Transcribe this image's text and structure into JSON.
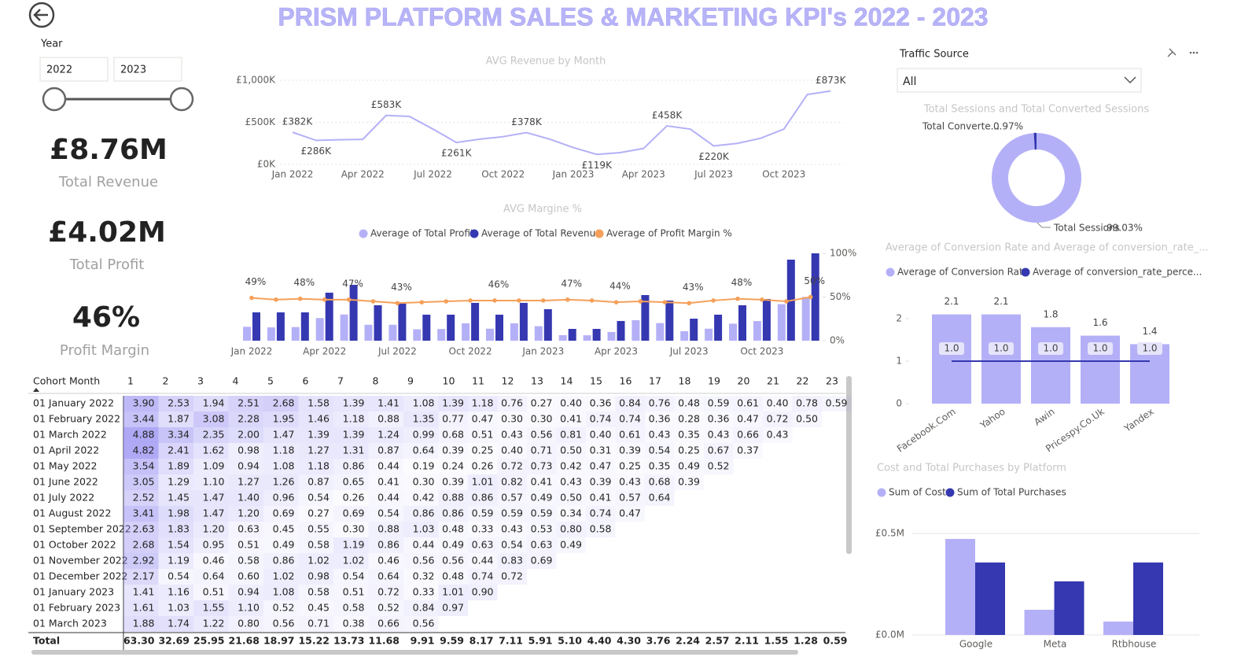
{
  "header": {
    "title": "PRISM PLATFORM SALES & MARKETING KPI's 2022 - 2023"
  },
  "year_slicer": {
    "label": "Year",
    "from": "2022",
    "to": "2023"
  },
  "kpis": [
    {
      "value": "£8.76M",
      "label": "Total Revenue"
    },
    {
      "value": "£4.02M",
      "label": "Total Profit"
    },
    {
      "value": "46%",
      "label": "Profit Margin"
    }
  ],
  "traffic_slicer": {
    "label": "Traffic Source",
    "value": "All"
  },
  "chart_data": [
    {
      "type": "line",
      "title": "AVG Revenue by Month",
      "color": "#b4b0f7",
      "categories": [
        "Jan 2022",
        null,
        null,
        "Apr 2022",
        null,
        null,
        "Jul 2022",
        null,
        null,
        "Oct 2022",
        null,
        null,
        "Jan 2023",
        null,
        null,
        "Apr 2023",
        null,
        null,
        "Jul 2023",
        null,
        null,
        "Oct 2023",
        null,
        null
      ],
      "values": [
        382000,
        286000,
        293000,
        298000,
        583000,
        570000,
        420000,
        261000,
        300000,
        330000,
        378000,
        300000,
        200000,
        119000,
        140000,
        190000,
        458000,
        420000,
        220000,
        250000,
        310000,
        420000,
        830000,
        873000
      ],
      "value_labels": [
        "£382K",
        "£286K",
        null,
        null,
        "£583K",
        null,
        null,
        "£261K",
        null,
        null,
        "£378K",
        null,
        null,
        "£119K",
        null,
        null,
        "£458K",
        null,
        "£220K",
        null,
        null,
        null,
        null,
        "£873K"
      ],
      "ylim": [
        0,
        1000000
      ],
      "yticks": [
        {
          "value": 0,
          "label": "£0K"
        },
        {
          "value": 500000,
          "label": "£500K"
        },
        {
          "value": 1000000,
          "label": "£1,000K"
        }
      ],
      "grid": true
    },
    {
      "type": "combo",
      "title": "AVG Margine %",
      "categories": [
        "Jan 2022",
        null,
        null,
        "Apr 2022",
        null,
        null,
        "Jul 2022",
        null,
        null,
        "Oct 2022",
        null,
        null,
        "Jan 2023",
        null,
        null,
        "Apr 2023",
        null,
        null,
        "Jul 2023",
        null,
        null,
        "Oct 2023",
        null,
        null
      ],
      "series": [
        {
          "name": "Average of Total Profit",
          "color": "#b4b0f7",
          "values": [
            139000,
            133000,
            136000,
            226000,
            262000,
            159000,
            159000,
            114000,
            117000,
            174000,
            120000,
            174000,
            145000,
            55000,
            54000,
            87000,
            205000,
            176000,
            95000,
            120000,
            170000,
            196000,
            365000,
            437000
          ]
        },
        {
          "name": "Average of Total Revenue",
          "color": "#3538b0",
          "values": [
            283000,
            283000,
            283000,
            480000,
            558000,
            354000,
            370000,
            260000,
            260000,
            378000,
            260000,
            378000,
            315000,
            118000,
            118000,
            197000,
            456000,
            401000,
            220000,
            260000,
            354000,
            417000,
            810000,
            873000
          ]
        },
        {
          "name": "Average of Profit Margin %",
          "color": "#f5a05a",
          "axis": "y2",
          "values": [
            49,
            47,
            48,
            47,
            47,
            45,
            43,
            44,
            45,
            46,
            46,
            46,
            46,
            47,
            46,
            44,
            45,
            44,
            43,
            46,
            48,
            47,
            45,
            50
          ],
          "value_labels": [
            "49%",
            null,
            "48%",
            null,
            "47%",
            null,
            "43%",
            null,
            null,
            null,
            "46%",
            null,
            null,
            "47%",
            null,
            "44%",
            null,
            null,
            "43%",
            null,
            "48%",
            null,
            null,
            "50%"
          ]
        }
      ],
      "y2lim": [
        0,
        100
      ],
      "y2ticks": [
        {
          "value": 0,
          "label": "0%"
        },
        {
          "value": 50,
          "label": "50%"
        },
        {
          "value": 100,
          "label": "100%"
        }
      ]
    },
    {
      "type": "donut",
      "title": "Total Sessions and Total Converted Sessions",
      "categories": [
        "Total Sessions",
        "Total Converte..."
      ],
      "values": [
        99.03,
        0.97
      ],
      "value_labels": [
        "99.03%",
        "0.97%"
      ],
      "colors": [
        "#b4b0f7",
        "#3538b0"
      ]
    },
    {
      "type": "combo",
      "title": "Average of Conversion Rate and Average of conversion_rate_...",
      "categories": [
        "Facebook.Com",
        "Yahoo",
        "Awin",
        "Pricespy.Co.Uk",
        "Yandex"
      ],
      "series": [
        {
          "name": "Average of Conversion Rate",
          "color": "#b4b0f7",
          "values": [
            2.1,
            2.1,
            1.8,
            1.6,
            1.4
          ]
        },
        {
          "name": "Average of conversion_rate_perce...",
          "color": "#3538b0",
          "values": [
            1,
            1,
            1,
            1,
            1
          ],
          "value_labels": [
            "1.0",
            "1.0",
            "1.0",
            "1.0",
            "1.0"
          ]
        }
      ],
      "ylim": [
        0,
        2.4
      ],
      "yticks": [
        0,
        1,
        2
      ]
    },
    {
      "type": "bar",
      "title": "Cost and Total Purchases by Platform",
      "categories": [
        "Google",
        "Meta",
        "Rtbhouse"
      ],
      "series": [
        {
          "name": "Sum of Cost",
          "color": "#b4b0f7",
          "values": [
            473000,
            124000,
            66000
          ]
        },
        {
          "name": "Sum of Total Purchases",
          "color": "#3538b0",
          "values": [
            357000,
            264000,
            357000
          ]
        }
      ],
      "ylim": [
        0,
        550000
      ],
      "yticks": [
        {
          "value": 0,
          "label": "£0.0M"
        },
        {
          "value": 500000,
          "label": "£0.5M"
        }
      ],
      "grid": true
    }
  ],
  "table": {
    "columns": [
      "Cohort Month",
      "1",
      "2",
      "3",
      "4",
      "5",
      "6",
      "7",
      "8",
      "9",
      "10",
      "11",
      "12",
      "13",
      "14",
      "15",
      "16",
      "17",
      "18",
      "19",
      "20",
      "21",
      "22",
      "23"
    ],
    "rows": [
      [
        "01 January 2022",
        "3.90",
        "2.53",
        "1.94",
        "2.51",
        "2.68",
        "1.58",
        "1.39",
        "1.41",
        "1.08",
        "1.39",
        "1.18",
        "0.76",
        "0.27",
        "0.40",
        "0.36",
        "0.84",
        "0.76",
        "0.48",
        "0.59",
        "0.61",
        "0.40",
        "0.78",
        "0.59"
      ],
      [
        "01 February 2022",
        "3.44",
        "1.87",
        "3.08",
        "2.28",
        "1.95",
        "1.46",
        "1.18",
        "0.88",
        "1.35",
        "0.77",
        "0.47",
        "0.30",
        "0.30",
        "0.41",
        "0.74",
        "0.74",
        "0.36",
        "0.28",
        "0.36",
        "0.47",
        "0.72",
        "0.50"
      ],
      [
        "01 March 2022",
        "4.88",
        "3.34",
        "2.35",
        "2.00",
        "1.47",
        "1.39",
        "1.39",
        "1.24",
        "0.99",
        "0.68",
        "0.51",
        "0.43",
        "0.56",
        "0.81",
        "0.40",
        "0.61",
        "0.43",
        "0.35",
        "0.43",
        "0.66",
        "0.43"
      ],
      [
        "01 April 2022",
        "4.82",
        "2.41",
        "1.62",
        "0.98",
        "1.18",
        "1.27",
        "1.31",
        "0.87",
        "0.64",
        "0.39",
        "0.25",
        "0.40",
        "0.71",
        "0.50",
        "0.31",
        "0.39",
        "0.54",
        "0.25",
        "0.67",
        "0.37"
      ],
      [
        "01 May 2022",
        "3.54",
        "1.89",
        "1.09",
        "0.94",
        "1.08",
        "1.18",
        "0.86",
        "0.44",
        "0.19",
        "0.24",
        "0.26",
        "0.72",
        "0.73",
        "0.42",
        "0.47",
        "0.25",
        "0.35",
        "0.49",
        "0.52"
      ],
      [
        "01 June 2022",
        "3.05",
        "1.29",
        "1.10",
        "1.27",
        "1.26",
        "0.87",
        "0.65",
        "0.41",
        "0.30",
        "0.39",
        "1.01",
        "0.82",
        "0.41",
        "0.43",
        "0.39",
        "0.43",
        "0.68",
        "0.39"
      ],
      [
        "01 July 2022",
        "2.52",
        "1.45",
        "1.47",
        "1.40",
        "0.96",
        "0.54",
        "0.26",
        "0.44",
        "0.42",
        "0.88",
        "0.86",
        "0.57",
        "0.49",
        "0.50",
        "0.41",
        "0.57",
        "0.64"
      ],
      [
        "01 August 2022",
        "3.41",
        "1.98",
        "1.47",
        "1.20",
        "0.69",
        "0.27",
        "0.69",
        "0.54",
        "0.86",
        "0.86",
        "0.59",
        "0.59",
        "0.59",
        "0.34",
        "0.74",
        "0.47"
      ],
      [
        "01 September 2022",
        "2.63",
        "1.83",
        "1.20",
        "0.63",
        "0.45",
        "0.55",
        "0.30",
        "0.88",
        "1.03",
        "0.48",
        "0.33",
        "0.43",
        "0.53",
        "0.80",
        "0.58"
      ],
      [
        "01 October 2022",
        "2.68",
        "1.54",
        "0.95",
        "0.51",
        "0.49",
        "0.58",
        "1.19",
        "0.86",
        "0.44",
        "0.49",
        "0.63",
        "0.54",
        "0.63",
        "0.49"
      ],
      [
        "01 November 2022",
        "2.92",
        "1.19",
        "0.46",
        "0.58",
        "0.86",
        "1.02",
        "1.02",
        "0.46",
        "0.56",
        "0.56",
        "0.44",
        "0.83",
        "0.69"
      ],
      [
        "01 December 2022",
        "2.17",
        "0.54",
        "0.64",
        "0.60",
        "1.02",
        "0.98",
        "0.54",
        "0.64",
        "0.32",
        "0.48",
        "0.74",
        "0.72"
      ],
      [
        "01 January 2023",
        "1.41",
        "1.16",
        "0.51",
        "0.94",
        "1.08",
        "0.58",
        "0.51",
        "0.72",
        "0.33",
        "1.01",
        "0.90"
      ],
      [
        "01 February 2023",
        "1.61",
        "1.03",
        "1.55",
        "1.10",
        "0.52",
        "0.45",
        "0.58",
        "0.52",
        "0.84",
        "0.97"
      ],
      [
        "01 March 2023",
        "1.88",
        "1.74",
        "1.22",
        "0.80",
        "0.56",
        "0.71",
        "0.38",
        "0.66",
        "0.56"
      ]
    ],
    "total": [
      "Total",
      "63.30",
      "32.69",
      "25.95",
      "21.68",
      "18.97",
      "15.22",
      "13.73",
      "11.68",
      "9.91",
      "9.59",
      "8.17",
      "7.11",
      "5.91",
      "5.10",
      "4.40",
      "4.30",
      "3.76",
      "2.24",
      "2.57",
      "2.11",
      "1.55",
      "1.28",
      "0.59"
    ]
  }
}
